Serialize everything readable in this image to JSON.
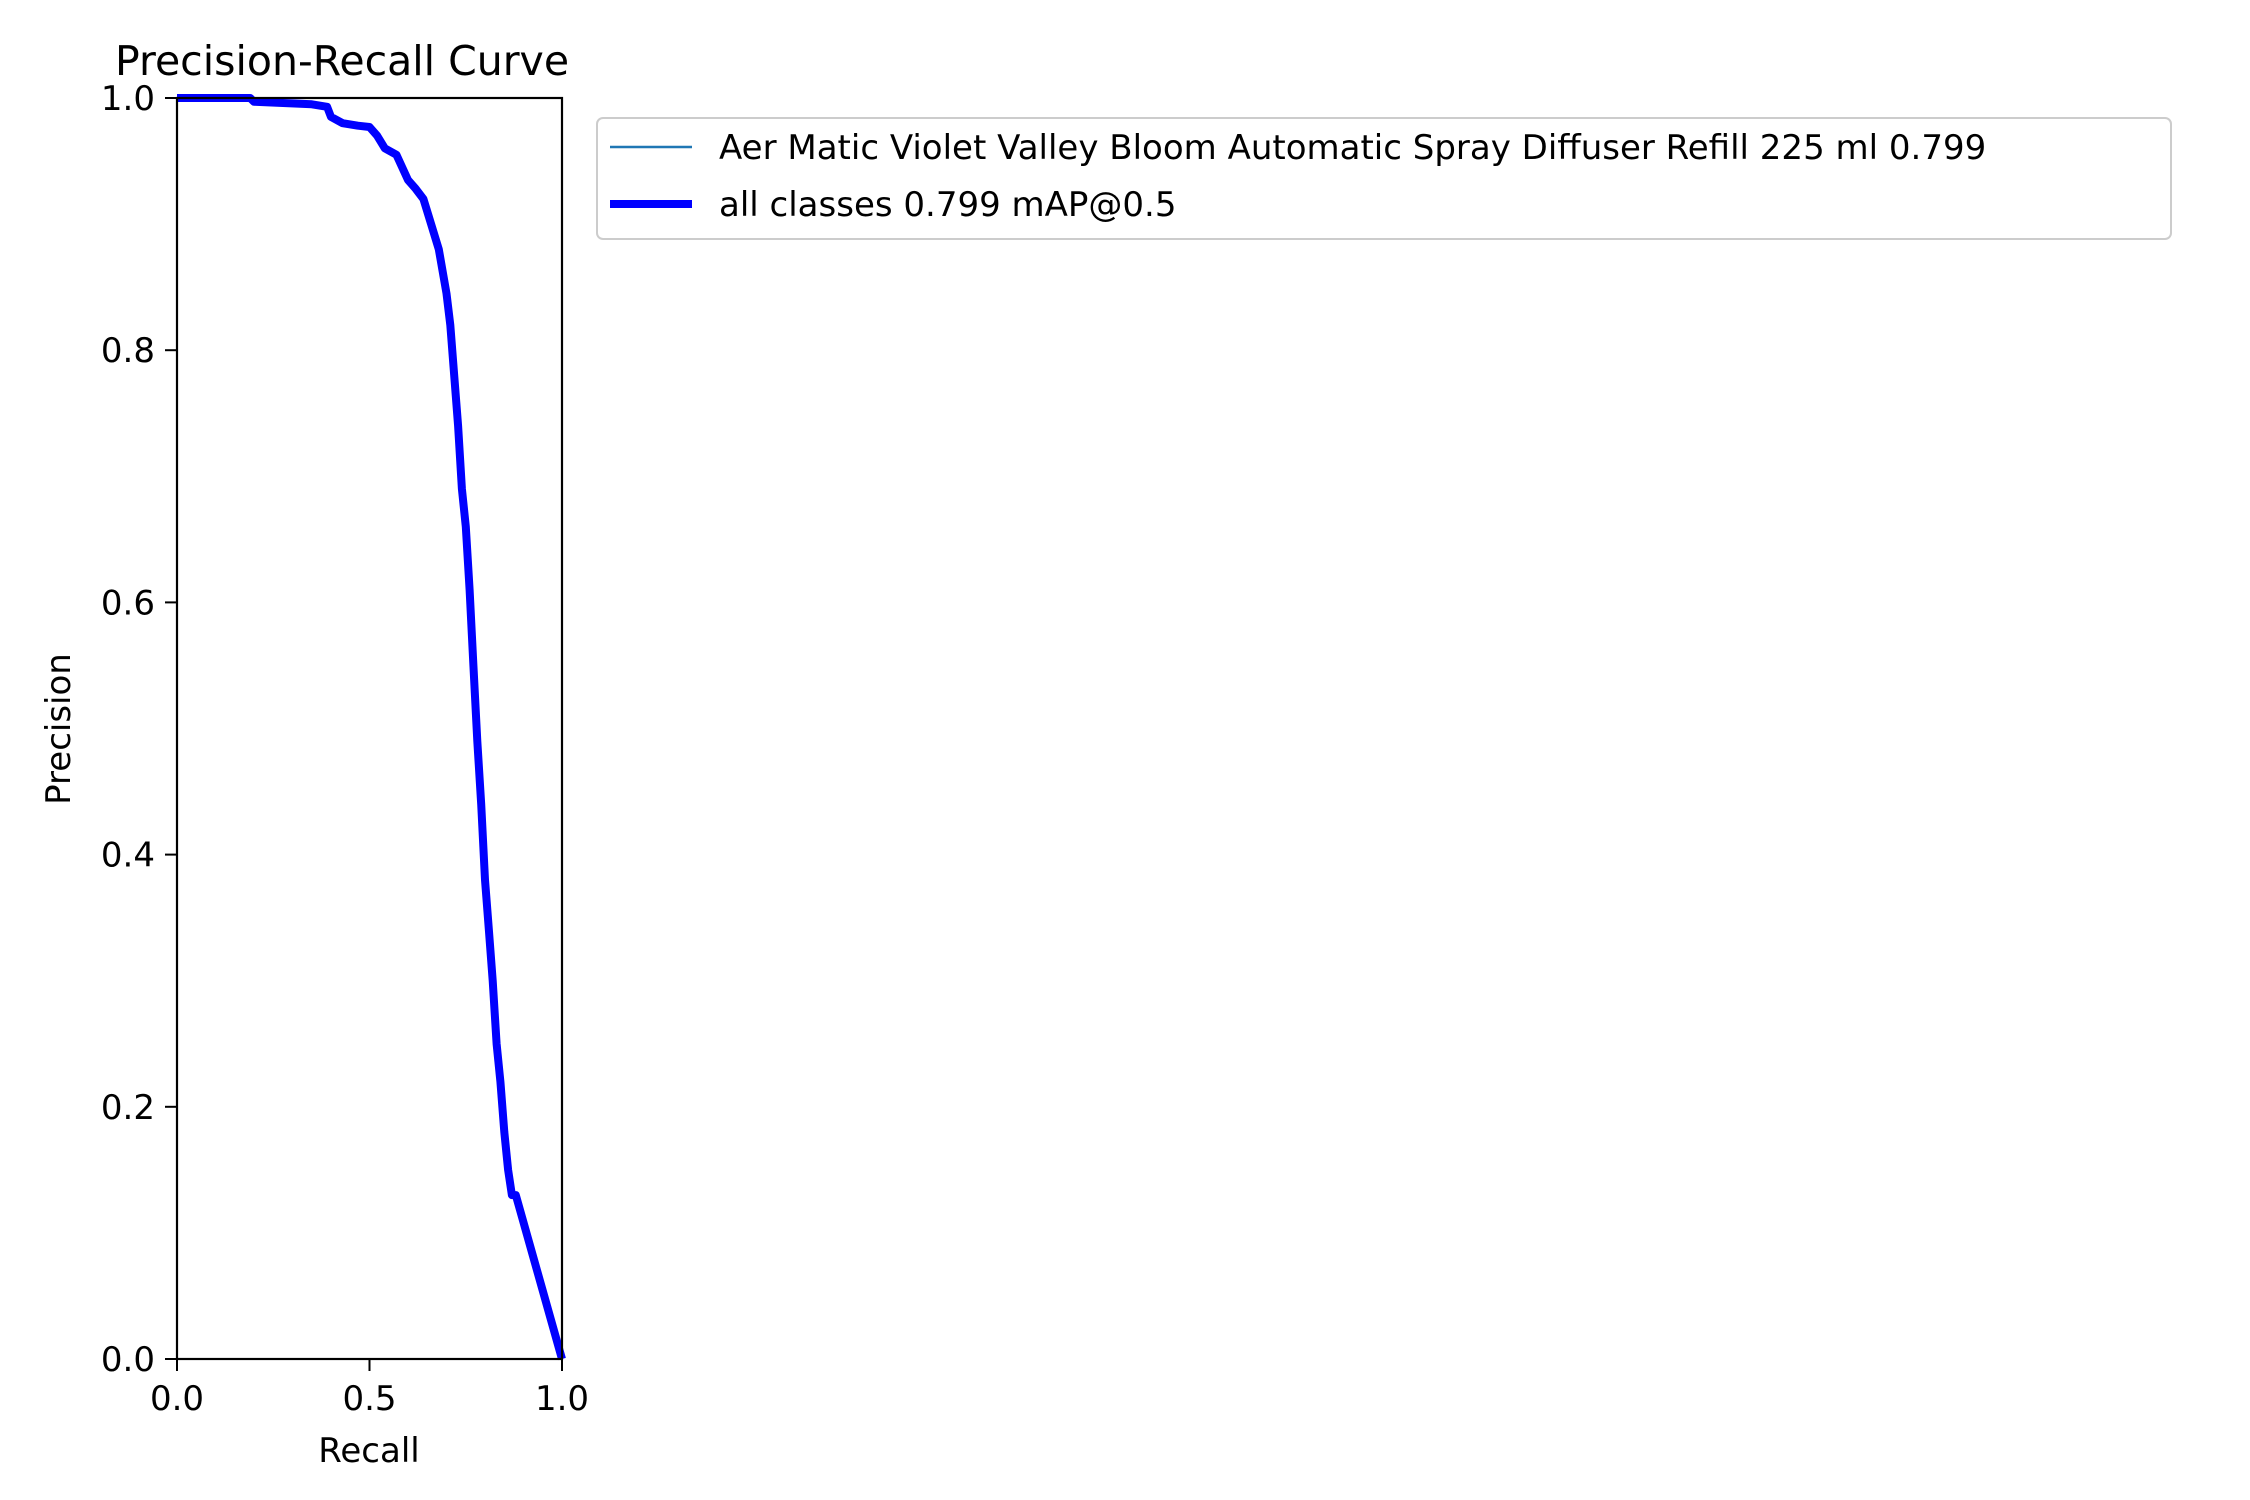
{
  "chart_data": {
    "type": "line",
    "title": "Precision-Recall Curve",
    "xlabel": "Recall",
    "ylabel": "Precision",
    "xlim": [
      0,
      1
    ],
    "ylim": [
      0,
      1
    ],
    "x_ticks": [
      0.0,
      0.5,
      1.0
    ],
    "x_tick_labels": [
      "0.0",
      "0.5",
      "1.0"
    ],
    "y_ticks": [
      0.0,
      0.2,
      0.4,
      0.6,
      0.8,
      1.0
    ],
    "y_tick_labels": [
      "0.0",
      "0.2",
      "0.4",
      "0.6",
      "0.8",
      "1.0"
    ],
    "grid": false,
    "legend_position": "outside-top-right",
    "series": [
      {
        "name": "Aer Matic Violet Valley Bloom Automatic Spray Diffuser Refill 225 ml 0.799",
        "color": "#1f77b4",
        "style": "thin",
        "x": [
          0.0,
          0.19,
          0.2,
          0.35,
          0.39,
          0.4,
          0.43,
          0.47,
          0.5,
          0.52,
          0.54,
          0.57,
          0.6,
          0.62,
          0.64,
          0.66,
          0.68,
          0.7,
          0.71,
          0.72,
          0.73,
          0.74,
          0.75,
          0.76,
          0.77,
          0.78,
          0.79,
          0.8,
          0.81,
          0.82,
          0.83,
          0.84,
          0.85,
          0.86,
          0.87,
          0.88,
          1.0
        ],
        "y": [
          1.0,
          1.0,
          0.997,
          0.995,
          0.993,
          0.985,
          0.98,
          0.978,
          0.977,
          0.97,
          0.96,
          0.955,
          0.935,
          0.928,
          0.92,
          0.9,
          0.88,
          0.845,
          0.82,
          0.78,
          0.74,
          0.69,
          0.66,
          0.61,
          0.55,
          0.49,
          0.44,
          0.38,
          0.34,
          0.3,
          0.25,
          0.22,
          0.18,
          0.15,
          0.13,
          0.13,
          0.0
        ]
      },
      {
        "name": "all classes 0.799 mAP@0.5",
        "color": "#0000ff",
        "style": "thick",
        "x": [
          0.0,
          0.19,
          0.2,
          0.35,
          0.39,
          0.4,
          0.43,
          0.47,
          0.5,
          0.52,
          0.54,
          0.57,
          0.6,
          0.62,
          0.64,
          0.66,
          0.68,
          0.7,
          0.71,
          0.72,
          0.73,
          0.74,
          0.75,
          0.76,
          0.77,
          0.78,
          0.79,
          0.8,
          0.81,
          0.82,
          0.83,
          0.84,
          0.85,
          0.86,
          0.87,
          0.88,
          1.0
        ],
        "y": [
          1.0,
          1.0,
          0.997,
          0.995,
          0.993,
          0.985,
          0.98,
          0.978,
          0.977,
          0.97,
          0.96,
          0.955,
          0.935,
          0.928,
          0.92,
          0.9,
          0.88,
          0.845,
          0.82,
          0.78,
          0.74,
          0.69,
          0.66,
          0.61,
          0.55,
          0.49,
          0.44,
          0.38,
          0.34,
          0.3,
          0.25,
          0.22,
          0.18,
          0.15,
          0.13,
          0.13,
          0.0
        ]
      }
    ]
  }
}
